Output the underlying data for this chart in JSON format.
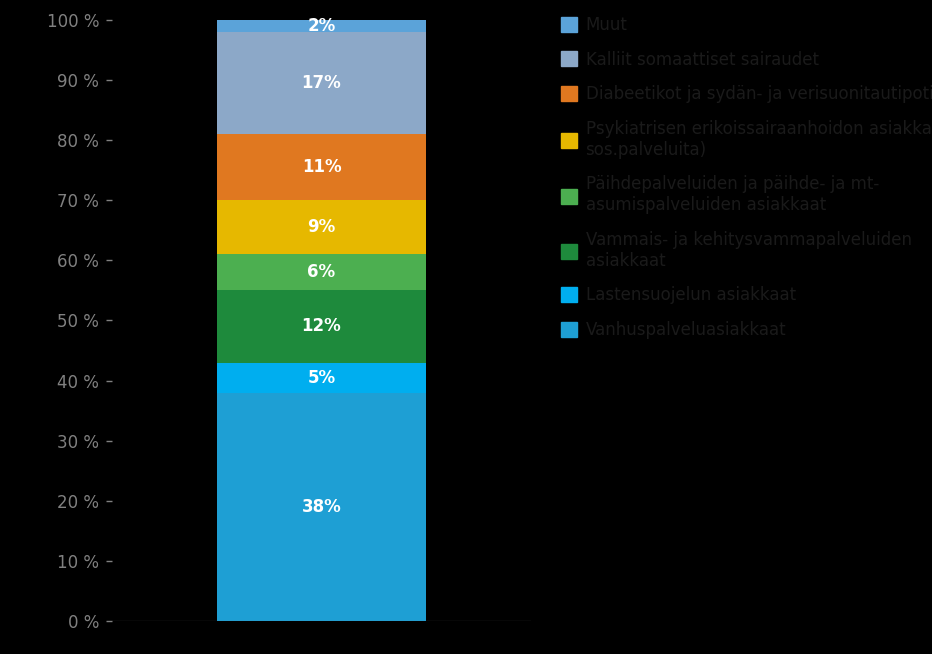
{
  "segments": [
    {
      "label": "Vanhuspalveluasiakkaat",
      "value": 38,
      "color": "#1E9FD4"
    },
    {
      "label": "Lastensuojelun asiakkaat",
      "value": 5,
      "color": "#00AEEF"
    },
    {
      "label": "Vammais- ja kehitysvammapalveluiden\nasiakkaat",
      "value": 12,
      "color": "#1E8A3C"
    },
    {
      "label": "Päihdepalveluiden ja päihde- ja mt-\nasumispalveluiden asiakkaat",
      "value": 6,
      "color": "#4CAF50"
    },
    {
      "label": "Psykiatrisen erikoissairaanhoidon asiakkaat (ei\nsos.palveluita)",
      "value": 9,
      "color": "#E6B800"
    },
    {
      "label": "Diabeetikot ja sydän- ja verisuonitautipotilaat",
      "value": 11,
      "color": "#E07820"
    },
    {
      "label": "Kalliit somaattiset sairaudet",
      "value": 17,
      "color": "#8CA8C8"
    },
    {
      "label": "Muut",
      "value": 2,
      "color": "#5BA3D9"
    }
  ],
  "background_color": "#000000",
  "ytick_color": "#808080",
  "text_color": "#FFFFFF",
  "legend_text_color": "#1A1A1A",
  "label_fontsize": 12,
  "pct_fontsize": 12,
  "ytick_labels": [
    "0 %",
    "10 %",
    "20 %",
    "30 %",
    "40 %",
    "50 %",
    "60 %",
    "70 %",
    "80 %",
    "90 %",
    "100 %"
  ],
  "bar_width": 0.5
}
